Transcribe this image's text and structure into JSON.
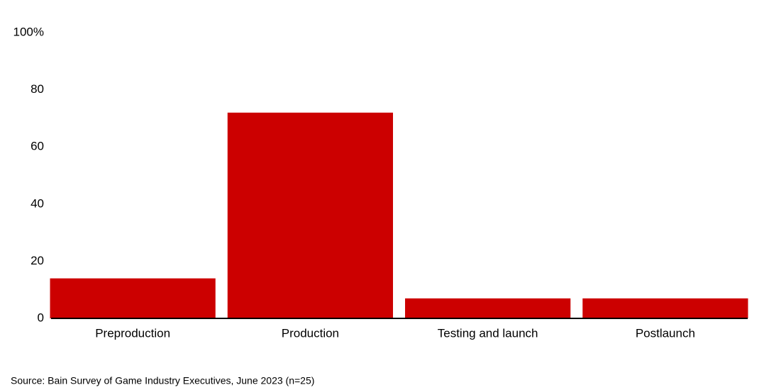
{
  "chart_data": {
    "type": "bar",
    "categories": [
      "Preproduction",
      "Production",
      "Testing and launch",
      "Postlaunch"
    ],
    "values": [
      14,
      72,
      7,
      7
    ],
    "color": "#cc0000",
    "ylim": [
      0,
      100
    ],
    "yticks": [
      0,
      20,
      40,
      60,
      80,
      {
        "value": 100,
        "label": "100%"
      }
    ],
    "grid": false,
    "source": "Source: Bain Survey of Game Industry Executives, June 2023 (n=25)"
  }
}
